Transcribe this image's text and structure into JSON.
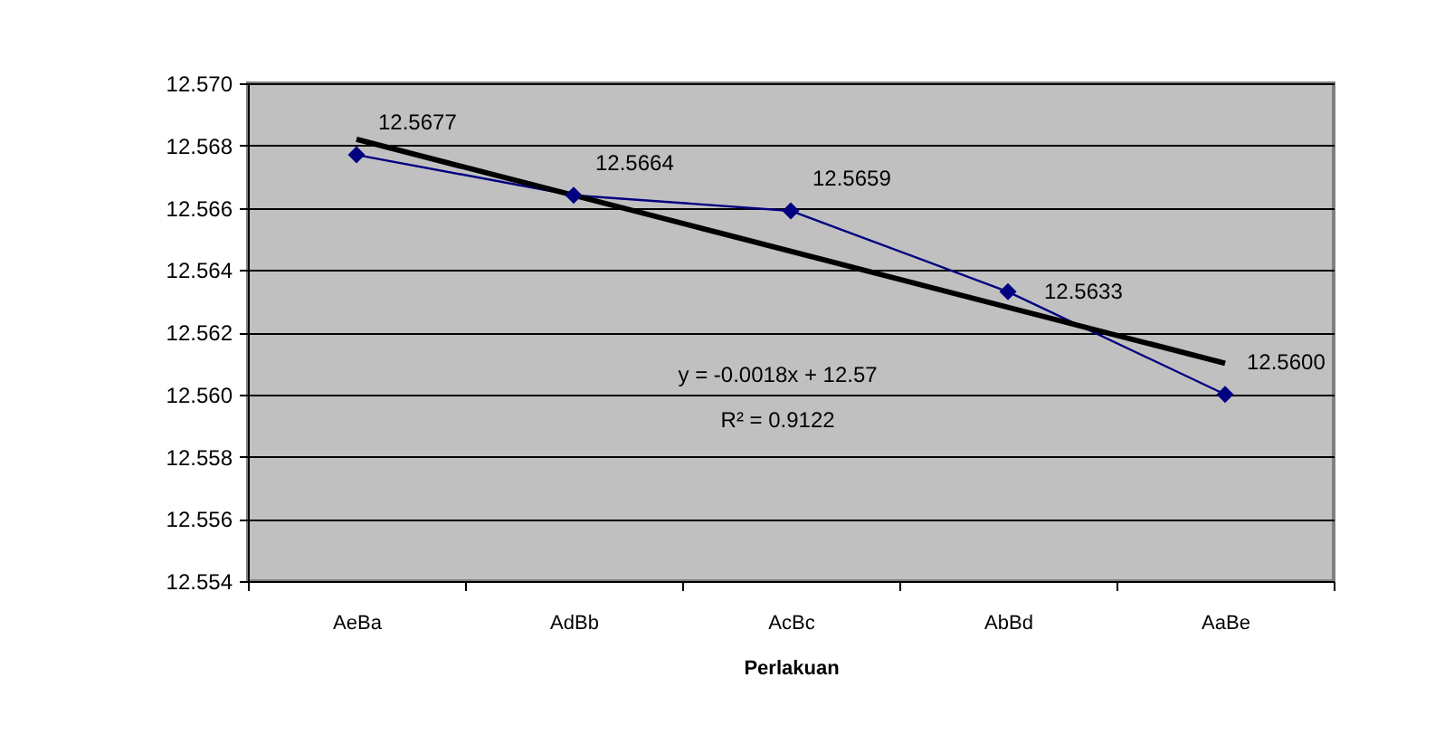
{
  "chart_data": {
    "type": "line",
    "xlabel": "Perlakuan",
    "categories": [
      "AeBa",
      "AdBb",
      "AcBc",
      "AbBd",
      "AaBe"
    ],
    "series": [
      {
        "color": "#000080",
        "values": [
          12.5677,
          12.5664,
          12.5659,
          12.5633,
          12.56
        ],
        "value_labels": [
          "12.5677",
          "12.5664",
          "12.5659",
          "12.5633",
          "12.5600"
        ]
      },
      {
        "type": "line",
        "color": "#000000",
        "x": [
          "AeBa",
          "AaBe"
        ],
        "values": [
          12.5682,
          12.561
        ],
        "marker": "none"
      }
    ],
    "ylim": [
      12.554,
      12.57
    ],
    "yticks": [
      12.554,
      12.556,
      12.558,
      {
        "value": 12.56,
        "label": "12.560"
      },
      12.562,
      12.564,
      12.566,
      12.568,
      {
        "value": 12.57,
        "label": "12.570"
      }
    ],
    "grid": "y",
    "marker": "diamond",
    "line_style": "solid",
    "annotations": [
      "y = -0.0018x + 12.57",
      "R² = 0.9122"
    ]
  }
}
